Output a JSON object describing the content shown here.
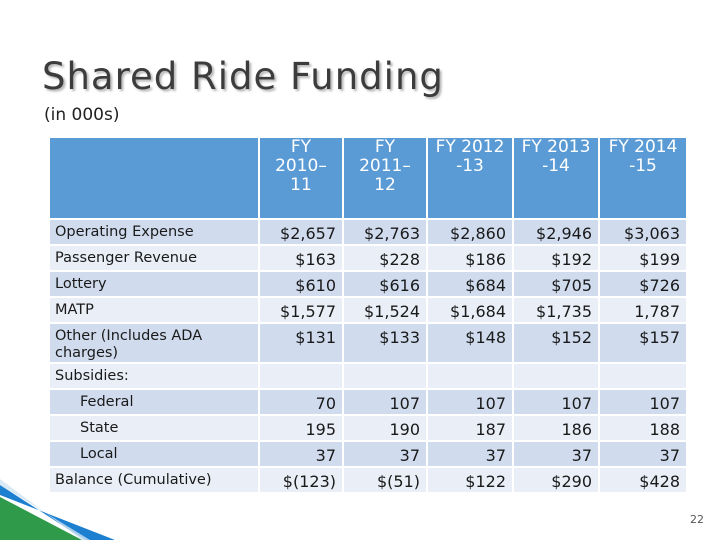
{
  "title": "Shared Ride Funding",
  "subtitle": "(in 000s)",
  "table": {
    "headers": [
      "",
      "FY 2010–11",
      "FY 2011–12",
      "FY 2012 -13",
      "FY 2013 -14",
      "FY 2014 -15"
    ],
    "header_lines": [
      [
        ""
      ],
      [
        "FY",
        "2010–",
        "11"
      ],
      [
        "FY",
        "2011–",
        "12"
      ],
      [
        "FY 2012",
        "-13"
      ],
      [
        "FY 2013",
        "-14"
      ],
      [
        "FY 2014",
        "-15"
      ]
    ],
    "rows": [
      {
        "label": "Operating Expense",
        "values": [
          "$2,657",
          "$2,763",
          "$2,860",
          "$2,946",
          "$3,063"
        ]
      },
      {
        "label": "Passenger Revenue",
        "values": [
          "$163",
          "$228",
          "$186",
          "$192",
          "$199"
        ]
      },
      {
        "label": "Lottery",
        "values": [
          "$610",
          "$616",
          "$684",
          "$705",
          "$726"
        ]
      },
      {
        "label": "MATP",
        "values": [
          "$1,577",
          "$1,524",
          "$1,684",
          "$1,735",
          "1,787"
        ]
      },
      {
        "label": "Other (Includes ADA charges)",
        "values": [
          "$131",
          "$133",
          "$148",
          "$152",
          "$157"
        ]
      },
      {
        "label": "Subsidies:",
        "values": [
          "",
          "",
          "",
          "",
          ""
        ]
      },
      {
        "label": "Federal",
        "values": [
          "70",
          "107",
          "107",
          "107",
          "107"
        ],
        "indent": true
      },
      {
        "label": "State",
        "values": [
          "195",
          "190",
          "187",
          "186",
          "188"
        ],
        "indent": true
      },
      {
        "label": "Local",
        "values": [
          "37",
          "37",
          "37",
          "37",
          "37"
        ],
        "indent": true
      },
      {
        "label": "Balance (Cumulative)",
        "values": [
          "$(123)",
          "$(51)",
          "$122",
          "$290",
          "$428"
        ]
      }
    ]
  },
  "page_number": "22",
  "colors": {
    "header_bg": "#5b9bd5",
    "row_dark": "#d0dcee",
    "row_light": "#e9eef7",
    "decor_green": "#2e9a4a",
    "decor_blue": "#1c7fcf"
  }
}
